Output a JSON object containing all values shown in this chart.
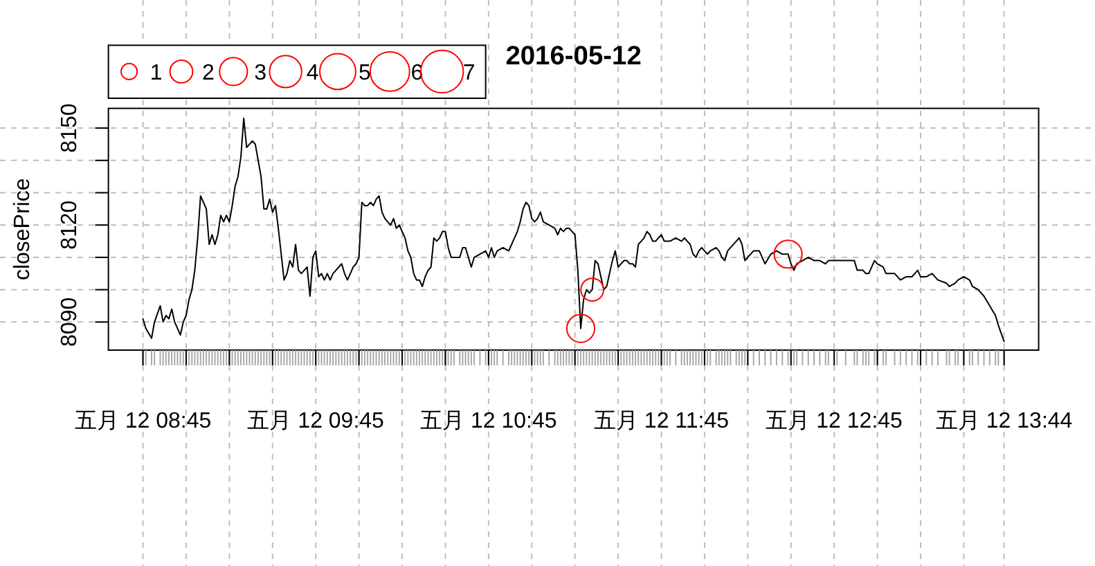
{
  "chart_data": {
    "type": "line",
    "title": "2016-05-12",
    "ylabel": "closePrice",
    "x": [
      "2016-05-12T08:45",
      "2016-05-12T08:46",
      "2016-05-12T08:48",
      "2016-05-12T08:49",
      "2016-05-12T08:51",
      "2016-05-12T08:52",
      "2016-05-12T08:53",
      "2016-05-12T08:54",
      "2016-05-12T08:55",
      "2016-05-12T08:56",
      "2016-05-12T08:57",
      "2016-05-12T08:58",
      "2016-05-12T08:59",
      "2016-05-12T09:00",
      "2016-05-12T09:01",
      "2016-05-12T09:02",
      "2016-05-12T09:03",
      "2016-05-12T09:04",
      "2016-05-12T09:05",
      "2016-05-12T09:06",
      "2016-05-12T09:07",
      "2016-05-12T09:08",
      "2016-05-12T09:09",
      "2016-05-12T09:10",
      "2016-05-12T09:11",
      "2016-05-12T09:12",
      "2016-05-12T09:13",
      "2016-05-12T09:14",
      "2016-05-12T09:15",
      "2016-05-12T09:16",
      "2016-05-12T09:17",
      "2016-05-12T09:18",
      "2016-05-12T09:19",
      "2016-05-12T09:20",
      "2016-05-12T09:21",
      "2016-05-12T09:22",
      "2016-05-12T09:23",
      "2016-05-12T09:24",
      "2016-05-12T09:25",
      "2016-05-12T09:26",
      "2016-05-12T09:27",
      "2016-05-12T09:28",
      "2016-05-12T09:29",
      "2016-05-12T09:30",
      "2016-05-12T09:31",
      "2016-05-12T09:32",
      "2016-05-12T09:33",
      "2016-05-12T09:34",
      "2016-05-12T09:35",
      "2016-05-12T09:36",
      "2016-05-12T09:37",
      "2016-05-12T09:38",
      "2016-05-12T09:39",
      "2016-05-12T09:40",
      "2016-05-12T09:41",
      "2016-05-12T09:42",
      "2016-05-12T09:43",
      "2016-05-12T09:44",
      "2016-05-12T09:45",
      "2016-05-12T09:46",
      "2016-05-12T09:47",
      "2016-05-12T09:48",
      "2016-05-12T09:49",
      "2016-05-12T09:50",
      "2016-05-12T09:51",
      "2016-05-12T09:52",
      "2016-05-12T09:53",
      "2016-05-12T09:54",
      "2016-05-12T09:55",
      "2016-05-12T09:56",
      "2016-05-12T09:57",
      "2016-05-12T09:58",
      "2016-05-12T09:59",
      "2016-05-12T10:00",
      "2016-05-12T10:01",
      "2016-05-12T10:02",
      "2016-05-12T10:03",
      "2016-05-12T10:04",
      "2016-05-12T10:05",
      "2016-05-12T10:06",
      "2016-05-12T10:07",
      "2016-05-12T10:08",
      "2016-05-12T10:09",
      "2016-05-12T10:10",
      "2016-05-12T10:11",
      "2016-05-12T10:12",
      "2016-05-12T10:13",
      "2016-05-12T10:14",
      "2016-05-12T10:15",
      "2016-05-12T10:16",
      "2016-05-12T10:17",
      "2016-05-12T10:18",
      "2016-05-12T10:19",
      "2016-05-12T10:20",
      "2016-05-12T10:21",
      "2016-05-12T10:22",
      "2016-05-12T10:23",
      "2016-05-12T10:24",
      "2016-05-12T10:25",
      "2016-05-12T10:26",
      "2016-05-12T10:27",
      "2016-05-12T10:28",
      "2016-05-12T10:29",
      "2016-05-12T10:30",
      "2016-05-12T10:31",
      "2016-05-12T10:32",
      "2016-05-12T10:33",
      "2016-05-12T10:35",
      "2016-05-12T10:36",
      "2016-05-12T10:37",
      "2016-05-12T10:38",
      "2016-05-12T10:39",
      "2016-05-12T10:40",
      "2016-05-12T10:42",
      "2016-05-12T10:44",
      "2016-05-12T10:45",
      "2016-05-12T10:46",
      "2016-05-12T10:47",
      "2016-05-12T10:48",
      "2016-05-12T10:50",
      "2016-05-12T10:52",
      "2016-05-12T10:53",
      "2016-05-12T10:54",
      "2016-05-12T10:55",
      "2016-05-12T10:56",
      "2016-05-12T10:57",
      "2016-05-12T10:58",
      "2016-05-12T10:59",
      "2016-05-12T11:00",
      "2016-05-12T11:01",
      "2016-05-12T11:02",
      "2016-05-12T11:03",
      "2016-05-12T11:04",
      "2016-05-12T11:06",
      "2016-05-12T11:08",
      "2016-05-12T11:09",
      "2016-05-12T11:10",
      "2016-05-12T11:11",
      "2016-05-12T11:12",
      "2016-05-12T11:13",
      "2016-05-12T11:14",
      "2016-05-12T11:15",
      "2016-05-12T11:16",
      "2016-05-12T11:17",
      "2016-05-12T11:18",
      "2016-05-12T11:19",
      "2016-05-12T11:20",
      "2016-05-12T11:21",
      "2016-05-12T11:22",
      "2016-05-12T11:23",
      "2016-05-12T11:24",
      "2016-05-12T11:25",
      "2016-05-12T11:26",
      "2016-05-12T11:27",
      "2016-05-12T11:28",
      "2016-05-12T11:29",
      "2016-05-12T11:30",
      "2016-05-12T11:31",
      "2016-05-12T11:32",
      "2016-05-12T11:33",
      "2016-05-12T11:34",
      "2016-05-12T11:35",
      "2016-05-12T11:36",
      "2016-05-12T11:37",
      "2016-05-12T11:38",
      "2016-05-12T11:39",
      "2016-05-12T11:40",
      "2016-05-12T11:41",
      "2016-05-12T11:42",
      "2016-05-12T11:43",
      "2016-05-12T11:44",
      "2016-05-12T11:45",
      "2016-05-12T11:46",
      "2016-05-12T11:47",
      "2016-05-12T11:48",
      "2016-05-12T11:50",
      "2016-05-12T11:52",
      "2016-05-12T11:53",
      "2016-05-12T11:54",
      "2016-05-12T11:55",
      "2016-05-12T11:56",
      "2016-05-12T11:57",
      "2016-05-12T11:58",
      "2016-05-12T11:59",
      "2016-05-12T12:00",
      "2016-05-12T12:01",
      "2016-05-12T12:02",
      "2016-05-12T12:04",
      "2016-05-12T12:05",
      "2016-05-12T12:06",
      "2016-05-12T12:07",
      "2016-05-12T12:08",
      "2016-05-12T12:09",
      "2016-05-12T12:11",
      "2016-05-12T12:12",
      "2016-05-12T12:13",
      "2016-05-12T12:14",
      "2016-05-12T12:15",
      "2016-05-12T12:17",
      "2016-05-12T12:19",
      "2016-05-12T12:21",
      "2016-05-12T12:23",
      "2016-05-12T12:25",
      "2016-05-12T12:27",
      "2016-05-12T12:29",
      "2016-05-12T12:30",
      "2016-05-12T12:31",
      "2016-05-12T12:32",
      "2016-05-12T12:34",
      "2016-05-12T12:36",
      "2016-05-12T12:38",
      "2016-05-12T12:40",
      "2016-05-12T12:42",
      "2016-05-12T12:43",
      "2016-05-12T12:46",
      "2016-05-12T12:49",
      "2016-05-12T12:52",
      "2016-05-12T12:53",
      "2016-05-12T12:55",
      "2016-05-12T12:56",
      "2016-05-12T12:57",
      "2016-05-12T12:59",
      "2016-05-12T13:00",
      "2016-05-12T13:02",
      "2016-05-12T13:03",
      "2016-05-12T13:06",
      "2016-05-12T13:08",
      "2016-05-12T13:10",
      "2016-05-12T13:12",
      "2016-05-12T13:14",
      "2016-05-12T13:15",
      "2016-05-12T13:17",
      "2016-05-12T13:19",
      "2016-05-12T13:21",
      "2016-05-12T13:24",
      "2016-05-12T13:25",
      "2016-05-12T13:27",
      "2016-05-12T13:28",
      "2016-05-12T13:30",
      "2016-05-12T13:32",
      "2016-05-12T13:33",
      "2016-05-12T13:35",
      "2016-05-12T13:37",
      "2016-05-12T13:39",
      "2016-05-12T13:41",
      "2016-05-12T13:42",
      "2016-05-12T13:44"
    ],
    "series": [
      {
        "color": "#000000",
        "values": [
          8091,
          8088,
          8085,
          8090,
          8095,
          8090,
          8092,
          8091,
          8094,
          8090,
          8088,
          8086,
          8090,
          8092,
          8097,
          8100,
          8106,
          8116,
          8129,
          8127,
          8125,
          8114,
          8117,
          8114,
          8117,
          8123,
          8121,
          8123,
          8121,
          8126,
          8132,
          8135,
          8141,
          8153,
          8144,
          8145,
          8146,
          8145,
          8140,
          8135,
          8125,
          8125,
          8128,
          8124,
          8126,
          8119,
          8111,
          8103,
          8105,
          8109,
          8107,
          8114,
          8106,
          8105,
          8106,
          8107,
          8098,
          8110,
          8112,
          8104,
          8105,
          8103,
          8105,
          8103,
          8105,
          8106,
          8107,
          8108,
          8105,
          8103,
          8105,
          8107,
          8108,
          8110,
          8127,
          8126,
          8126,
          8127,
          8126,
          8128,
          8129,
          8124,
          8122,
          8121,
          8120,
          8122,
          8119,
          8120,
          8118,
          8116,
          8112,
          8110,
          8105,
          8103,
          8103,
          8101,
          8104,
          8106,
          8107,
          8116,
          8115,
          8116,
          8118,
          8118,
          8113,
          8110,
          8110,
          8110,
          8113,
          8113,
          8110,
          8107,
          8110,
          8111,
          8112,
          8110,
          8113,
          8110,
          8112,
          8113,
          8112,
          8114,
          8116,
          8118,
          8121,
          8125,
          8127,
          8126,
          8122,
          8121,
          8122,
          8124,
          8121,
          8120,
          8119,
          8117,
          8119,
          8118,
          8119,
          8119,
          8118,
          8117,
          8106,
          8088,
          8097,
          8100,
          8099,
          8100,
          8109,
          8108,
          8104,
          8100,
          8101,
          8105,
          8109,
          8112,
          8107,
          8108,
          8109,
          8109,
          8108,
          8108,
          8107,
          8114,
          8115,
          8116,
          8118,
          8117,
          8115,
          8115,
          8116,
          8117,
          8115,
          8115,
          8115,
          8116,
          8115,
          8116,
          8115,
          8114,
          8111,
          8110,
          8112,
          8113,
          8112,
          8111,
          8112,
          8113,
          8112,
          8110,
          8109,
          8112,
          8113,
          8115,
          8116,
          8114,
          8109,
          8110,
          8112,
          8112,
          8108,
          8111,
          8112,
          8111,
          8111,
          8108,
          8106,
          8108,
          8109,
          8110,
          8109,
          8109,
          8108,
          8109,
          8109,
          8109,
          8109,
          8106,
          8106,
          8105,
          8105,
          8109,
          8108,
          8107,
          8105,
          8105,
          8103,
          8104,
          8104,
          8106,
          8104,
          8104,
          8105,
          8103,
          8102,
          8101,
          8102,
          8103,
          8104,
          8103,
          8101,
          8100,
          8098,
          8095,
          8092,
          8089,
          8084
        ]
      },
      {
        "type": "bubble",
        "color": "#ff0000",
        "x": [
          "2016-05-12T11:17",
          "2016-05-12T11:21",
          "2016-05-12T12:29"
        ],
        "values": [
          8088,
          8100,
          8111
        ],
        "sizes": [
          3,
          2,
          3
        ]
      }
    ],
    "size_legend": [
      1,
      2,
      3,
      4,
      5,
      6,
      7
    ],
    "xlim": [
      "2016-05-12T08:33",
      "2016-05-12T13:56"
    ],
    "xticks": [
      {
        "value": "2016-05-12T08:45",
        "label": "五月 12 08:45"
      },
      {
        "value": "2016-05-12T09:00",
        "label": null
      },
      {
        "value": "2016-05-12T09:15",
        "label": null
      },
      {
        "value": "2016-05-12T09:30",
        "label": null
      },
      {
        "value": "2016-05-12T09:45",
        "label": "五月 12 09:45"
      },
      {
        "value": "2016-05-12T10:00",
        "label": null
      },
      {
        "value": "2016-05-12T10:15",
        "label": null
      },
      {
        "value": "2016-05-12T10:30",
        "label": null
      },
      {
        "value": "2016-05-12T10:45",
        "label": "五月 12 10:45"
      },
      {
        "value": "2016-05-12T11:00",
        "label": null
      },
      {
        "value": "2016-05-12T11:15",
        "label": null
      },
      {
        "value": "2016-05-12T11:30",
        "label": null
      },
      {
        "value": "2016-05-12T11:45",
        "label": "五月 12 11:45"
      },
      {
        "value": "2016-05-12T12:00",
        "label": null
      },
      {
        "value": "2016-05-12T12:15",
        "label": null
      },
      {
        "value": "2016-05-12T12:30",
        "label": null
      },
      {
        "value": "2016-05-12T12:45",
        "label": "五月 12 12:45"
      },
      {
        "value": "2016-05-12T13:00",
        "label": null
      },
      {
        "value": "2016-05-12T13:15",
        "label": null
      },
      {
        "value": "2016-05-12T13:30",
        "label": null
      },
      {
        "value": "2016-05-12T13:44",
        "label": "五月 12 13:44"
      }
    ],
    "ylim": [
      8081.3,
      8156.1
    ],
    "yticks": [
      8090,
      {
        "value": 8100,
        "label": null
      },
      {
        "value": 8110,
        "label": null
      },
      8120,
      {
        "value": 8130,
        "label": null
      },
      {
        "value": 8140,
        "label": null
      },
      8150
    ],
    "grid": true
  }
}
